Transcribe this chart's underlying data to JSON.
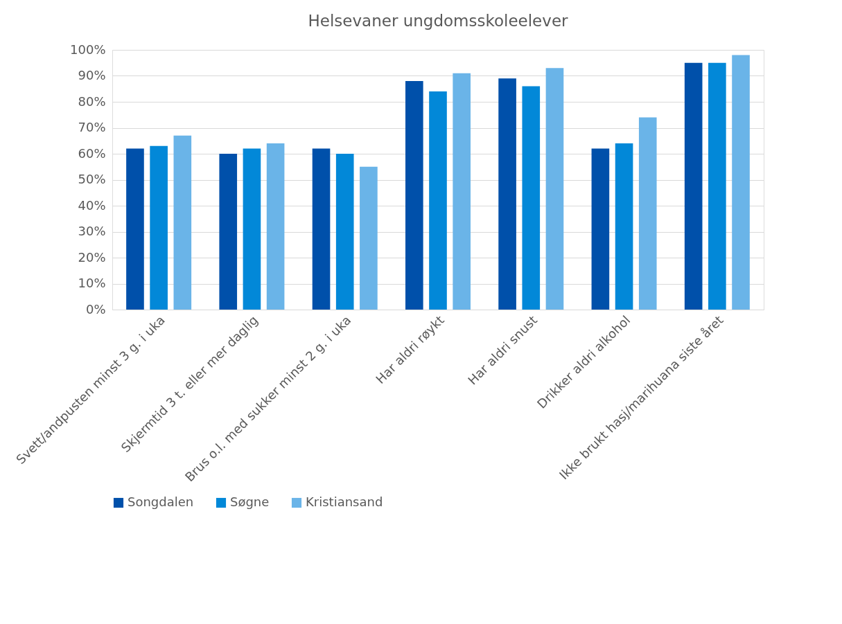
{
  "chart_data": {
    "type": "bar",
    "title": "Helsevaner ungdomsskoleelever",
    "categories": [
      "Svett/andpusten minst 3 g. i uka",
      "Skjermtid 3 t. eller mer daglig",
      "Brus o.l. med sukker minst 2 g. i uka",
      "Har aldri røykt",
      "Har aldri snust",
      "Drikker aldri alkohol",
      "Ikke brukt hasj/marihuana siste året"
    ],
    "series": [
      {
        "name": "Songdalen",
        "color": "#0050aa",
        "values": [
          62,
          60,
          62,
          88,
          89,
          62,
          95
        ]
      },
      {
        "name": "Søgne",
        "color": "#0288d8",
        "values": [
          63,
          62,
          60,
          84,
          86,
          64,
          95
        ]
      },
      {
        "name": "Kristiansand",
        "color": "#6ab4e8",
        "values": [
          67,
          64,
          55,
          91,
          93,
          74,
          98
        ]
      }
    ],
    "ylim": [
      0,
      100
    ],
    "yticks": [
      {
        "value": 0,
        "label": "0%"
      },
      {
        "value": 10,
        "label": "10%"
      },
      {
        "value": 20,
        "label": "20%"
      },
      {
        "value": 30,
        "label": "30%"
      },
      {
        "value": 40,
        "label": "40%"
      },
      {
        "value": 50,
        "label": "50%"
      },
      {
        "value": 60,
        "label": "60%"
      },
      {
        "value": 70,
        "label": "70%"
      },
      {
        "value": 80,
        "label": "80%"
      },
      {
        "value": 90,
        "label": "90%"
      },
      {
        "value": 100,
        "label": "100%"
      }
    ],
    "grid": "y",
    "legend": "bottom"
  }
}
